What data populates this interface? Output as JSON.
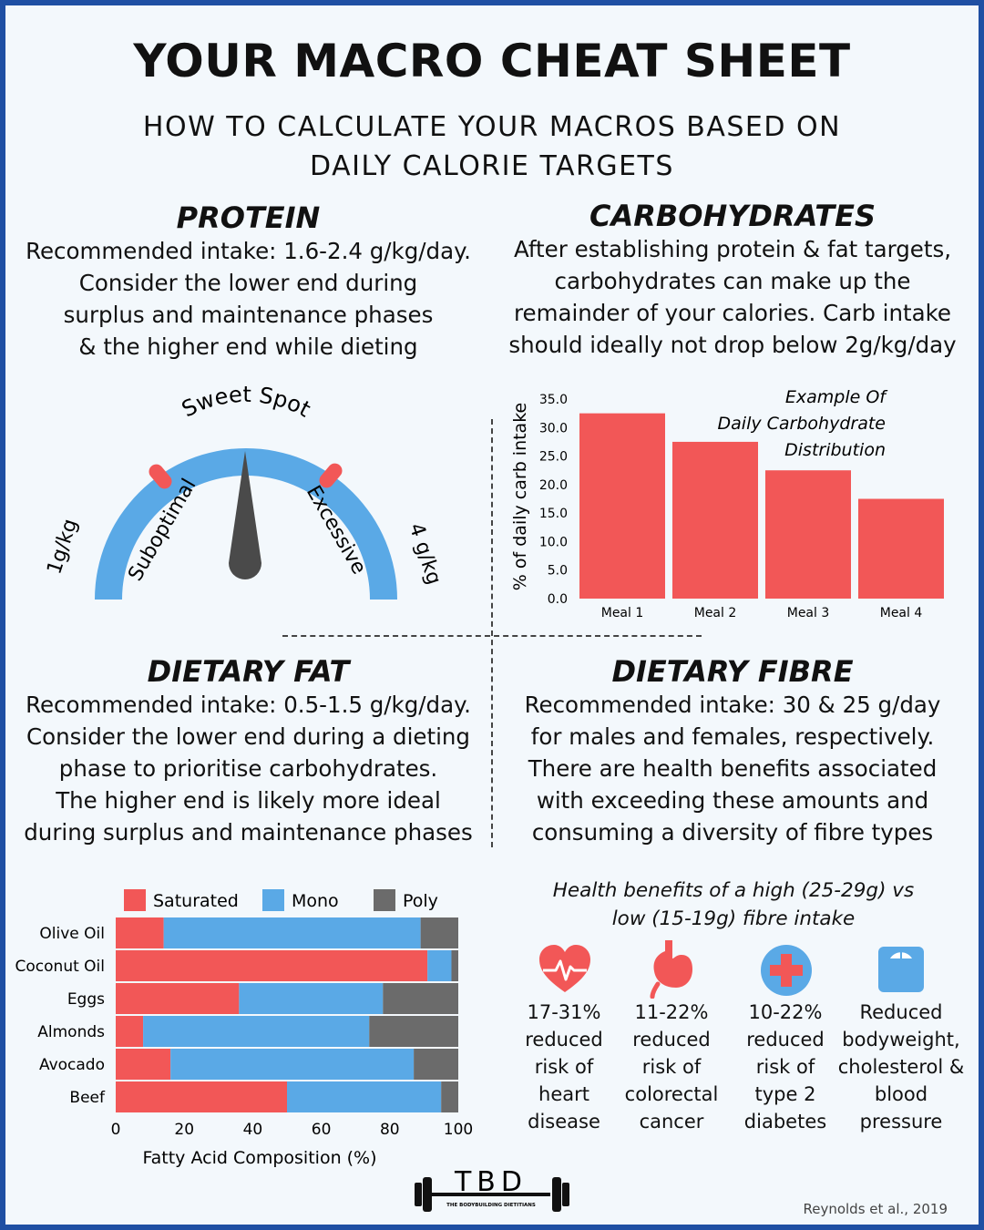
{
  "title": "YOUR MACRO CHEAT SHEET",
  "subtitle_lines": [
    "HOW TO CALCULATE YOUR MACROS BASED ON",
    "DAILY CALORIE TARGETS"
  ],
  "protein": {
    "heading": "PROTEIN",
    "lines": [
      "Recommended intake: 1.6-2.4 g/kg/day.",
      "Consider the lower end during",
      "surplus and maintenance phases",
      "& the higher end while dieting"
    ],
    "gauge": {
      "top_label": "Sweet Spot",
      "left_end": "1g/kg",
      "right_end": "4 g/kg",
      "left_zone": "Suboptimal",
      "right_zone": "Excessive",
      "arc_color": "#5aa9e6",
      "marker_color": "#f25757",
      "needle_color": "#4a4a4a"
    }
  },
  "carbohydrates": {
    "heading": "CARBOHYDRATES",
    "lines": [
      "After establishing protein & fat targets,",
      "carbohydrates can make up the",
      "remainder of your calories. Carb intake",
      "should ideally not drop below 2g/kg/day"
    ]
  },
  "dietary_fat": {
    "heading": "DIETARY FAT",
    "lines": [
      "Recommended intake: 0.5-1.5 g/kg/day.",
      "Consider the lower end during a dieting",
      "phase to prioritise carbohydrates.",
      "The higher end is likely more ideal",
      "during surplus and maintenance phases"
    ]
  },
  "dietary_fibre": {
    "heading": "DIETARY FIBRE",
    "lines": [
      "Recommended intake: 30 & 25 g/day",
      "for males and females, respectively.",
      "There are health benefits associated",
      "with exceeding these amounts and",
      "consuming a diversity of fibre types"
    ],
    "benefits_title_lines": [
      "Health benefits of a high (25-29g) vs",
      "low  (15-19g) fibre intake"
    ],
    "benefits": [
      {
        "icon": "heart-pulse-icon",
        "lines": [
          "17-31%",
          "reduced",
          "risk of",
          "heart",
          "disease"
        ]
      },
      {
        "icon": "stomach-icon",
        "lines": [
          "11-22%",
          "reduced",
          "risk of",
          "colorectal",
          "cancer"
        ]
      },
      {
        "icon": "medical-cross-icon",
        "lines": [
          "10-22%",
          "reduced",
          "risk of",
          "type 2",
          "diabetes"
        ]
      },
      {
        "icon": "scale-icon",
        "lines": [
          "Reduced",
          "bodyweight,",
          "cholesterol &",
          "blood",
          "pressure"
        ]
      }
    ]
  },
  "logo": {
    "text": "TBD",
    "subtext": "THE BODYBUILDING DIETITIANS"
  },
  "citation": "Reynolds et al., 2019",
  "colors": {
    "red": "#f25757",
    "blue": "#5aa9e6",
    "grey": "#6b6b6b",
    "border": "#1f4fa3",
    "background": "#f3f8fc"
  },
  "chart_data": [
    {
      "type": "bar",
      "title_lines": [
        "Example Of",
        "Daily Carbohydrate",
        "Distribution"
      ],
      "categories": [
        "Meal 1",
        "Meal 2",
        "Meal 3",
        "Meal 4"
      ],
      "values": [
        32.5,
        27.5,
        22.5,
        17.5
      ],
      "ylabel": "% of daily carb intake",
      "xlabel": "",
      "ylim": [
        0,
        35
      ],
      "yticks": [
        "0.0",
        "5.0",
        "10.0",
        "15.0",
        "20.0",
        "25.0",
        "30.0",
        "35.0"
      ],
      "grid": false,
      "color": "#f25757"
    },
    {
      "type": "bar",
      "orientation": "horizontal-stacked",
      "categories": [
        "Olive Oil",
        "Coconut Oil",
        "Eggs",
        "Almonds",
        "Avocado",
        "Beef"
      ],
      "series": [
        {
          "name": "Saturated",
          "values": [
            14,
            91,
            36,
            8,
            16,
            50
          ],
          "color": "#f25757"
        },
        {
          "name": "Mono",
          "values": [
            75,
            7,
            42,
            66,
            71,
            45
          ],
          "color": "#5aa9e6"
        },
        {
          "name": "Poly",
          "values": [
            11,
            2,
            22,
            26,
            13,
            5
          ],
          "color": "#6b6b6b"
        }
      ],
      "xlabel": "Fatty Acid Composition (%)",
      "xlim": [
        0,
        100
      ],
      "xticks": [
        "0",
        "20",
        "40",
        "60",
        "80",
        "100"
      ],
      "legend": "top",
      "grid": false
    }
  ]
}
